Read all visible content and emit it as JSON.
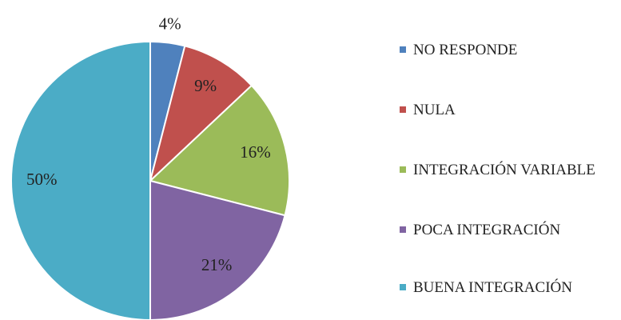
{
  "chart_data": {
    "type": "pie",
    "categories": [
      "NO RESPONDE",
      "NULA",
      "INTEGRACIÓN VARIABLE",
      "POCA INTEGRACIÓN",
      "BUENA INTEGRACIÓN"
    ],
    "values": [
      4,
      9,
      16,
      21,
      50
    ],
    "value_labels": [
      "4%",
      "9%",
      "16%",
      "21%",
      "50%"
    ],
    "colors": [
      "#4f81bd",
      "#c0504d",
      "#9bbb59",
      "#8064a2",
      "#4bacc6"
    ],
    "legend": "right"
  }
}
